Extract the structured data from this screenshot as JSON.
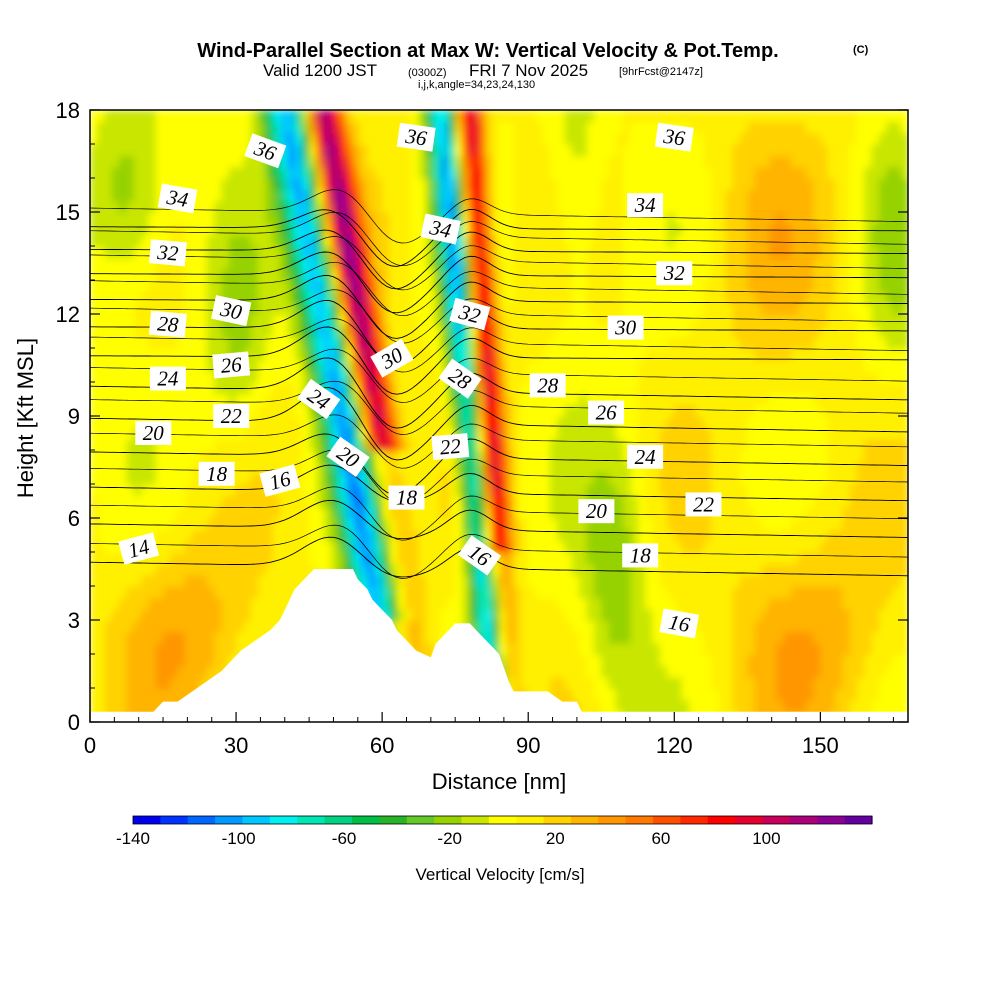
{
  "figure": {
    "title_main": "Wind-Parallel Section at Max W: Vertical Velocity & Pot.Temp.",
    "title_copyright": "(C)",
    "subtitle_valid": "Valid 1200 JST",
    "subtitle_utc": "(0300Z)",
    "subtitle_date": "FRI 7 Nov 2025",
    "subtitle_fcst": "[9hrFcst@2147z]",
    "subtitle_ijk": "i,j,k,angle=34,23,24,130",
    "xlabel": "Distance [nm]",
    "ylabel": "Height [Kft MSL]",
    "colorbar_label": "Vertical Velocity [cm/s]"
  },
  "chart_data": {
    "type": "heatmap",
    "x_range": [
      0,
      168
    ],
    "y_range": [
      0,
      18
    ],
    "x_ticks": [
      "0",
      "30",
      "60",
      "90",
      "120",
      "150"
    ],
    "x_tick_values": [
      0,
      30,
      60,
      90,
      120,
      150
    ],
    "y_ticks": [
      "0",
      "3",
      "6",
      "9",
      "12",
      "15",
      "18"
    ],
    "y_tick_values": [
      0,
      3,
      6,
      9,
      12,
      15,
      18
    ],
    "colorbar_ticks": [
      "-140",
      "-100",
      "-60",
      "-20",
      "20",
      "60",
      "100"
    ],
    "colorbar_tick_values": [
      -140,
      -100,
      -60,
      -20,
      20,
      60,
      100
    ],
    "colorbar_range": [
      -140,
      140
    ],
    "colorbar_colors": [
      "#0000ee",
      "#0033ff",
      "#0066ff",
      "#0099ff",
      "#00c8ff",
      "#00f0f0",
      "#00e6b4",
      "#00d282",
      "#00be46",
      "#28b428",
      "#64c828",
      "#96d200",
      "#c8e600",
      "#ffff00",
      "#fff000",
      "#ffd200",
      "#ffb400",
      "#ff9600",
      "#ff7800",
      "#ff5000",
      "#ff2800",
      "#ff0000",
      "#e6002d",
      "#c8005a",
      "#aa0078",
      "#8c0096",
      "#6400a0"
    ],
    "terrain_kft": [
      [
        0,
        0.3
      ],
      [
        13,
        0.3
      ],
      [
        15,
        0.6
      ],
      [
        18,
        0.6
      ],
      [
        21,
        0.9
      ],
      [
        24,
        1.2
      ],
      [
        27,
        1.5
      ],
      [
        29,
        1.8
      ],
      [
        31,
        2.1
      ],
      [
        34,
        2.4
      ],
      [
        37,
        2.7
      ],
      [
        39,
        3.0
      ],
      [
        40,
        3.3
      ],
      [
        41,
        3.6
      ],
      [
        42,
        3.9
      ],
      [
        44,
        4.2
      ],
      [
        46,
        4.5
      ],
      [
        54,
        4.5
      ],
      [
        55,
        4.2
      ],
      [
        57,
        3.9
      ],
      [
        58,
        3.6
      ],
      [
        60,
        3.3
      ],
      [
        62,
        3.0
      ],
      [
        63,
        2.7
      ],
      [
        65,
        2.4
      ],
      [
        67,
        2.1
      ],
      [
        70,
        1.9
      ],
      [
        71,
        2.3
      ],
      [
        73,
        2.6
      ],
      [
        75,
        2.9
      ],
      [
        78,
        2.9
      ],
      [
        80,
        2.6
      ],
      [
        82,
        2.3
      ],
      [
        84,
        2.0
      ],
      [
        85,
        1.6
      ],
      [
        86,
        1.2
      ],
      [
        87,
        0.9
      ],
      [
        94,
        0.9
      ],
      [
        97,
        0.6
      ],
      [
        100,
        0.6
      ],
      [
        101,
        0.3
      ],
      [
        168,
        0.3
      ]
    ],
    "wmax_plume_cm_s": 110,
    "wmin_plume_cm_s": -110,
    "theta_contour_levels_K": [
      14,
      16,
      18,
      20,
      22,
      24,
      26,
      28,
      30,
      32,
      34,
      36
    ],
    "theta_contour_labels": [
      {
        "text": "36",
        "x": 36,
        "y": 16.8,
        "angle": 20
      },
      {
        "text": "36",
        "x": 67,
        "y": 17.2,
        "angle": 8
      },
      {
        "text": "36",
        "x": 120,
        "y": 17.2,
        "angle": 8
      },
      {
        "text": "34",
        "x": 18,
        "y": 15.4,
        "angle": 10
      },
      {
        "text": "34",
        "x": 72,
        "y": 14.5,
        "angle": 12
      },
      {
        "text": "34",
        "x": 114,
        "y": 15.2,
        "angle": 0
      },
      {
        "text": "32",
        "x": 16,
        "y": 13.8,
        "angle": 5
      },
      {
        "text": "32",
        "x": 78,
        "y": 12.0,
        "angle": 15
      },
      {
        "text": "32",
        "x": 120,
        "y": 13.2,
        "angle": 0
      },
      {
        "text": "30",
        "x": 29,
        "y": 12.1,
        "angle": 12
      },
      {
        "text": "30",
        "x": 62,
        "y": 10.7,
        "angle": -30
      },
      {
        "text": "30",
        "x": 110,
        "y": 11.6,
        "angle": 0
      },
      {
        "text": "28",
        "x": 16,
        "y": 11.7,
        "angle": 5
      },
      {
        "text": "28",
        "x": 76,
        "y": 10.1,
        "angle": 35
      },
      {
        "text": "28",
        "x": 94,
        "y": 9.9,
        "angle": 0
      },
      {
        "text": "26",
        "x": 29,
        "y": 10.5,
        "angle": -5
      },
      {
        "text": "26",
        "x": 106,
        "y": 9.1,
        "angle": 0
      },
      {
        "text": "24",
        "x": 16,
        "y": 10.1,
        "angle": 0
      },
      {
        "text": "24",
        "x": 47,
        "y": 9.5,
        "angle": 35
      },
      {
        "text": "24",
        "x": 114,
        "y": 7.8,
        "angle": 0
      },
      {
        "text": "22",
        "x": 29,
        "y": 9.0,
        "angle": 0
      },
      {
        "text": "22",
        "x": 74,
        "y": 8.1,
        "angle": -5
      },
      {
        "text": "22",
        "x": 126,
        "y": 6.4,
        "angle": 0
      },
      {
        "text": "20",
        "x": 13,
        "y": 8.5,
        "angle": 0
      },
      {
        "text": "20",
        "x": 53,
        "y": 7.8,
        "angle": 35
      },
      {
        "text": "20",
        "x": 104,
        "y": 6.2,
        "angle": 0
      },
      {
        "text": "18",
        "x": 26,
        "y": 7.3,
        "angle": 0
      },
      {
        "text": "18",
        "x": 65,
        "y": 6.6,
        "angle": 0
      },
      {
        "text": "18",
        "x": 113,
        "y": 4.9,
        "angle": 0
      },
      {
        "text": "16",
        "x": 39,
        "y": 7.1,
        "angle": -15
      },
      {
        "text": "16",
        "x": 80,
        "y": 4.9,
        "angle": 35
      },
      {
        "text": "16",
        "x": 121,
        "y": 2.9,
        "angle": 10
      },
      {
        "text": "14",
        "x": 10,
        "y": 5.1,
        "angle": -15
      }
    ]
  }
}
